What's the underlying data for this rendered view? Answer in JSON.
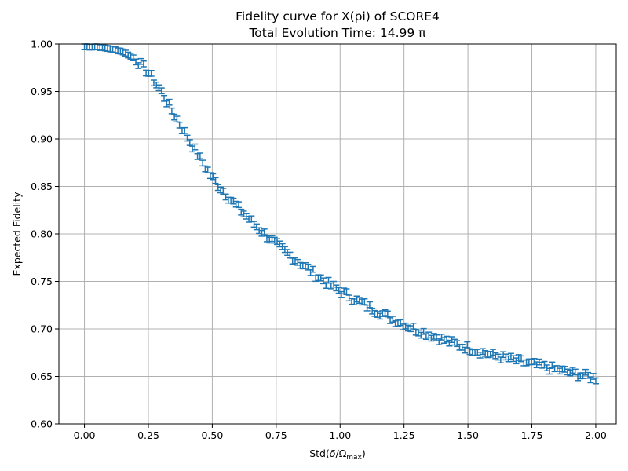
{
  "chart_data": {
    "type": "scatter",
    "title_line1": "Fidelity curve for X(pi) of SCORE4",
    "title_line2": "Total Evolution Time: 14.99 π",
    "xlabel_prefix": "Std(",
    "xlabel_delta": "δ",
    "xlabel_slash": "/Ω",
    "xlabel_sub": "max",
    "xlabel_suffix": ")",
    "ylabel": "Expected Fidelity",
    "xlim": [
      -0.1,
      2.08
    ],
    "ylim": [
      0.6,
      1.0
    ],
    "xticks": [
      "0.00",
      "0.25",
      "0.50",
      "0.75",
      "1.00",
      "1.25",
      "1.50",
      "1.75",
      "2.00"
    ],
    "yticks": [
      "0.60",
      "0.65",
      "0.70",
      "0.75",
      "0.80",
      "0.85",
      "0.90",
      "0.95",
      "1.00"
    ],
    "grid": true,
    "marker": "error-bar cap",
    "color": "#1f77b4",
    "x_range": [
      0.0,
      2.0
    ],
    "n_points": 200,
    "curve_x": [
      0.0,
      0.05,
      0.1,
      0.15,
      0.2,
      0.25,
      0.3,
      0.35,
      0.4,
      0.45,
      0.5,
      0.55,
      0.6,
      0.65,
      0.7,
      0.75,
      0.8,
      0.85,
      0.9,
      0.95,
      1.0,
      1.05,
      1.1,
      1.15,
      1.2,
      1.25,
      1.3,
      1.35,
      1.4,
      1.45,
      1.5,
      1.55,
      1.6,
      1.65,
      1.7,
      1.75,
      1.8,
      1.85,
      1.9,
      1.95,
      2.0
    ],
    "curve_y": [
      0.997,
      0.997,
      0.995,
      0.992,
      0.984,
      0.97,
      0.95,
      0.926,
      0.903,
      0.88,
      0.859,
      0.843,
      0.828,
      0.814,
      0.801,
      0.789,
      0.778,
      0.768,
      0.758,
      0.748,
      0.74,
      0.732,
      0.725,
      0.718,
      0.711,
      0.705,
      0.699,
      0.694,
      0.689,
      0.684,
      0.68,
      0.676,
      0.672,
      0.669,
      0.666,
      0.663,
      0.66,
      0.657,
      0.654,
      0.651,
      0.648
    ],
    "error_halfwidth": 0.003
  }
}
